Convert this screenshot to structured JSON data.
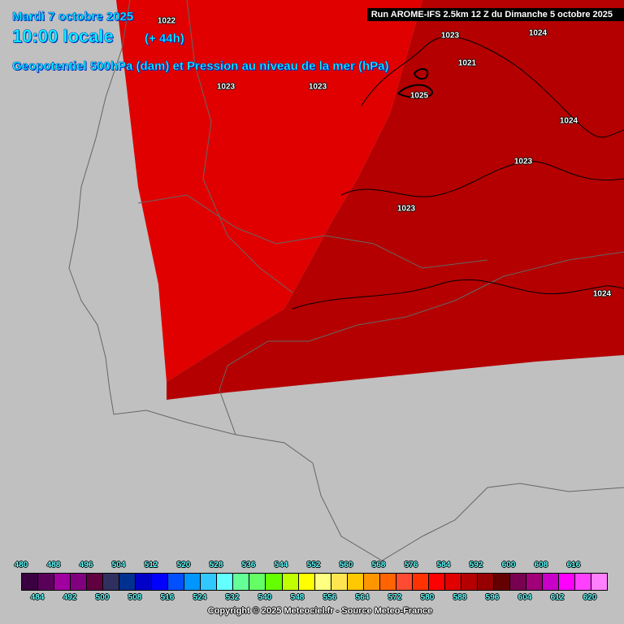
{
  "header": {
    "date": "Mardi 7 octobre 2025",
    "time": "10:00 locale",
    "lead": "(+ 44h)",
    "field_title": "Geopotentiel 500hPa (dam) et Pression au niveau de la mer (hPa)",
    "run": "Run AROME-IFS 2.5km 12 Z du Dimanche 5 octobre 2025"
  },
  "map": {
    "land_sea_color": "#c0c0c0",
    "fields": [
      {
        "class": "584-588 dam",
        "color": "#e00000"
      },
      {
        "class": "588-592 dam",
        "color": "#b40000"
      }
    ],
    "isobar_labels": [
      "1022",
      "1023",
      "1023",
      "1023",
      "1024",
      "1021",
      "1025",
      "1024",
      "1023",
      "1023",
      "1024"
    ]
  },
  "legend": {
    "top_ticks": [
      "480",
      "488",
      "496",
      "504",
      "512",
      "520",
      "528",
      "536",
      "544",
      "552",
      "560",
      "568",
      "576",
      "584",
      "592",
      "600",
      "608",
      "616"
    ],
    "bottom_ticks": [
      "484",
      "492",
      "500",
      "508",
      "516",
      "524",
      "532",
      "540",
      "548",
      "556",
      "564",
      "572",
      "580",
      "588",
      "596",
      "604",
      "612",
      "620"
    ],
    "colors": [
      "#3a0040",
      "#5a005a",
      "#a000a0",
      "#800080",
      "#600040",
      "#303060",
      "#003090",
      "#0000c8",
      "#0000ff",
      "#0050ff",
      "#0096ff",
      "#30c8ff",
      "#64ffff",
      "#64ff96",
      "#64ff64",
      "#64ff00",
      "#c0ff00",
      "#ffff00",
      "#ffff80",
      "#ffe650",
      "#ffc800",
      "#ff9600",
      "#ff6400",
      "#ff4b32",
      "#ff3200",
      "#ff0000",
      "#e00000",
      "#b40000",
      "#960000",
      "#640000",
      "#780050",
      "#a00078",
      "#c800c8",
      "#ff00ff",
      "#ff40ff",
      "#ff80ff"
    ]
  },
  "footer": {
    "copyright": "Copyright © 2025 Meteociel.fr - Source Meteo-France"
  }
}
